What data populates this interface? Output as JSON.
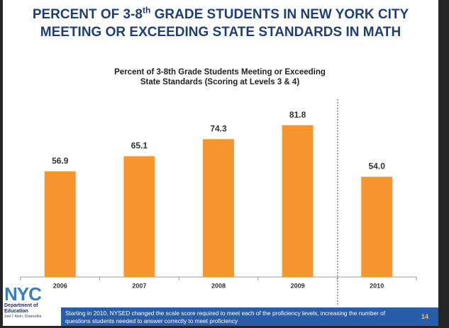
{
  "slide": {
    "title": {
      "line1_start": "PERCENT OF 3-8",
      "superscript": "th",
      "line1_end": " GRADE STUDENTS IN NEW YORK CITY",
      "line2": "MEETING OR EXCEEDING STATE STANDARDS IN MATH"
    },
    "logo": {
      "mark": "NYC",
      "line1": "Department of",
      "line2": "Education",
      "line3": "Joel I. Klein, Chancellor"
    },
    "footnote": "Starting in 2010, NYSED changed the scale score required to meet each of the proficiency levels, increasing the number of questions students needed to answer correctly to meet proficiency",
    "page_number": "14"
  },
  "chart_data": {
    "type": "bar",
    "title": [
      "Percent of 3-8th Grade Students Meeting or Exceeding",
      "State Standards (Scoring at Levels 3 & 4)"
    ],
    "categories": [
      "2006",
      "2007",
      "2008",
      "2009",
      "2010"
    ],
    "values": [
      56.9,
      65.1,
      74.3,
      81.8,
      54.0
    ],
    "value_labels": [
      "56.9",
      "65.1",
      "74.3",
      "81.8",
      "54.0"
    ],
    "color": "#f7962f",
    "ylim": [
      0,
      100
    ]
  }
}
